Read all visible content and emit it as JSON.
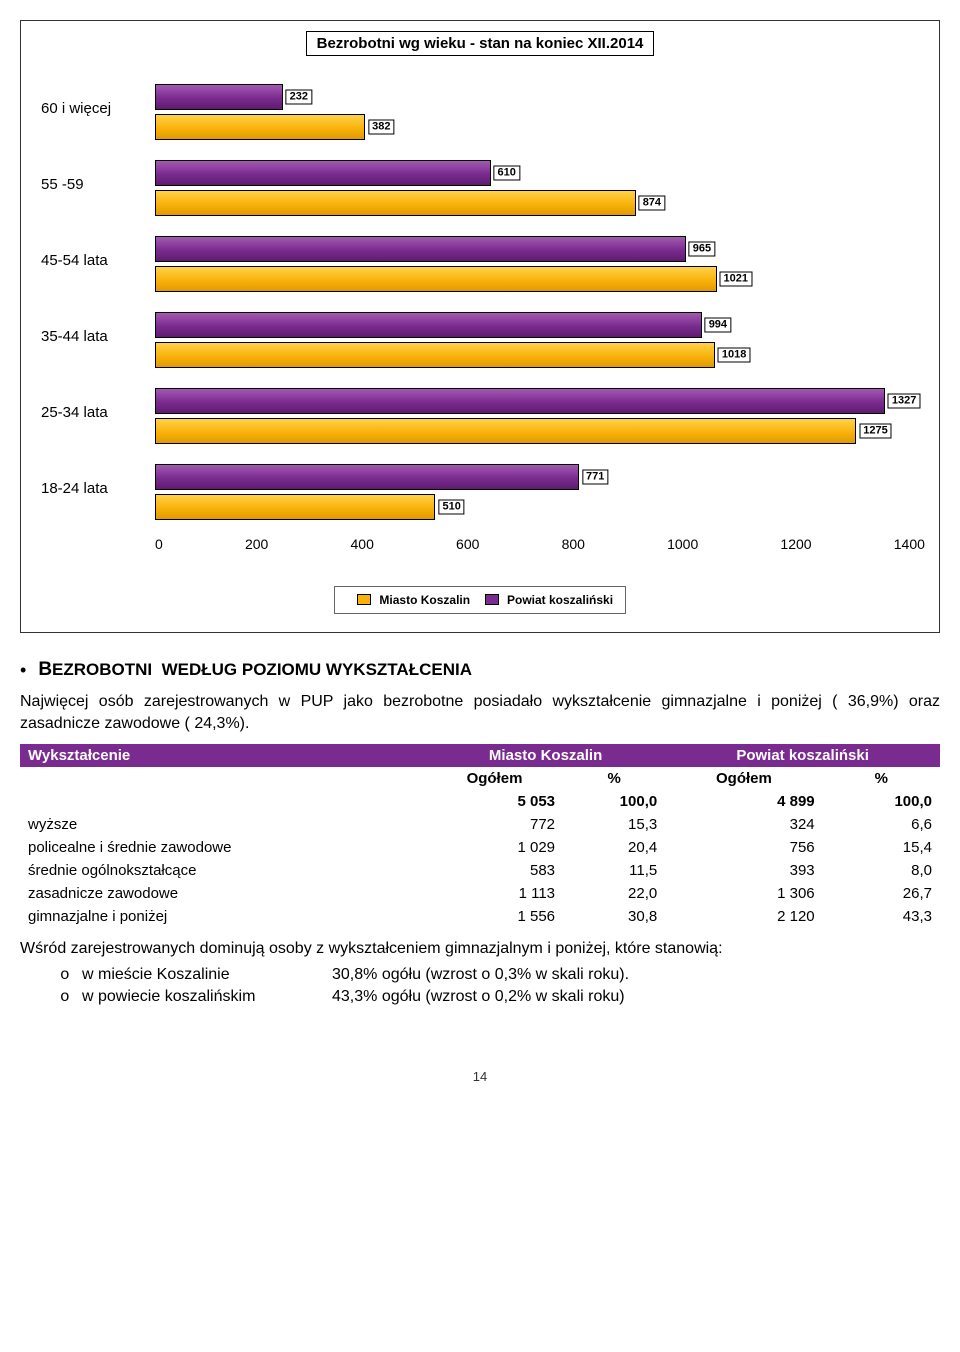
{
  "chart": {
    "title": "Bezrobotni wg wieku - stan na koniec XII.2014",
    "xmax": 1400,
    "categories": [
      {
        "name": "60 i więcej",
        "purple": 232,
        "orange": 382
      },
      {
        "name": "55 -59",
        "purple": 610,
        "orange": 874
      },
      {
        "name": "45-54 lata",
        "purple": 965,
        "orange": 1021
      },
      {
        "name": "35-44 lata",
        "purple": 994,
        "orange": 1018
      },
      {
        "name": "25-34 lata",
        "purple": 1327,
        "orange": 1275
      },
      {
        "name": "18-24 lata",
        "purple": 771,
        "orange": 510
      }
    ],
    "xticks": [
      "0",
      "200",
      "400",
      "600",
      "800",
      "1000",
      "1200",
      "1400"
    ],
    "legend": {
      "s1": "Miasto Koszalin",
      "s2": "Powiat koszaliński"
    },
    "colors": {
      "purple": "#7a2b8f",
      "orange": "#f9b20b"
    }
  },
  "heading": "Bezrobotni  według poziomu wykształcenia",
  "para1": "Najwięcej osób zarejestrowanych w PUP jako bezrobotne posiadało wykształcenie gimnazjalne i poniżej ( 36,9%) oraz zasadnicze zawodowe ( 24,3%).",
  "table": {
    "head": {
      "c0": "Wykształcenie",
      "c1": "Miasto Koszalin",
      "c2": "Powiat koszaliński",
      "s1": "Ogółem",
      "s2": "%",
      "s3": "Ogółem",
      "s4": "%"
    },
    "rows": [
      {
        "label": "",
        "a": "5 053",
        "b": "100,0",
        "c": "4 899",
        "d": "100,0"
      },
      {
        "label": "wyższe",
        "a": "772",
        "b": "15,3",
        "c": "324",
        "d": "6,6"
      },
      {
        "label": "policealne i średnie zawodowe",
        "a": "1 029",
        "b": "20,4",
        "c": "756",
        "d": "15,4"
      },
      {
        "label": "średnie ogólnokształcące",
        "a": "583",
        "b": "11,5",
        "c": "393",
        "d": "8,0"
      },
      {
        "label": "zasadnicze zawodowe",
        "a": "1 113",
        "b": "22,0",
        "c": "1 306",
        "d": "26,7"
      },
      {
        "label": "gimnazjalne i poniżej",
        "a": "1 556",
        "b": "30,8",
        "c": "2 120",
        "d": "43,3"
      }
    ]
  },
  "para2": "Wśród zarejestrowanych dominują osoby z wykształceniem  gimnazjalnym i poniżej, które  stanowią:",
  "sub": [
    {
      "l": "w mieście Koszalinie",
      "r": "30,8% ogółu (wzrost o 0,3% w skali roku)."
    },
    {
      "l": "w powiecie koszalińskim",
      "r": "43,3% ogółu (wzrost o 0,2% w skali roku)"
    }
  ],
  "page": "14"
}
